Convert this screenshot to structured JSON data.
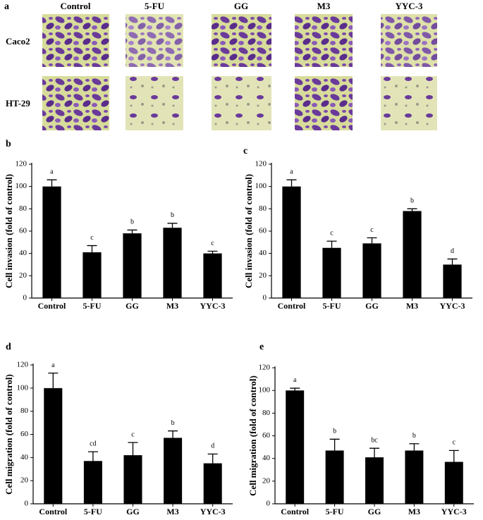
{
  "panel_a": {
    "label": "a",
    "columns": [
      "Control",
      "5-FU",
      "GG",
      "M3",
      "YYC-3"
    ],
    "rows": [
      "Caco2",
      "HT-29"
    ]
  },
  "chart_data": [
    {
      "type": "bar",
      "panel": "b",
      "y_label": "Cell invasion (fold of control)",
      "categories": [
        "Control",
        "5-FU",
        "GG",
        "M3",
        "YYC-3"
      ],
      "values": [
        100,
        41,
        58,
        63,
        40
      ],
      "errors": [
        6,
        6,
        3,
        4,
        2
      ],
      "annotations": [
        "a",
        "c",
        "b",
        "b",
        "c"
      ],
      "color": "#000000",
      "ylim": [
        0,
        120
      ],
      "yticks": [
        0,
        20,
        40,
        60,
        80,
        100,
        120
      ]
    },
    {
      "type": "bar",
      "panel": "c",
      "y_label": "Cell invasion (fold of control)",
      "categories": [
        "Control",
        "5-FU",
        "GG",
        "M3",
        "YYC-3"
      ],
      "values": [
        100,
        45,
        49,
        78,
        30
      ],
      "errors": [
        6,
        6,
        5,
        2,
        5
      ],
      "annotations": [
        "a",
        "c",
        "c",
        "b",
        "d"
      ],
      "color": "#000000",
      "ylim": [
        0,
        120
      ],
      "yticks": [
        0,
        20,
        40,
        60,
        80,
        100,
        120
      ]
    },
    {
      "type": "bar",
      "panel": "d",
      "y_label": "Cell migration (fold of control)",
      "categories": [
        "Control",
        "5-FU",
        "GG",
        "M3",
        "YYC-3"
      ],
      "values": [
        100,
        37,
        42,
        57,
        35
      ],
      "errors": [
        13,
        8,
        11,
        6,
        8
      ],
      "annotations": [
        "a",
        "cd",
        "c",
        "b",
        "d"
      ],
      "color": "#000000",
      "ylim": [
        0,
        120
      ],
      "yticks": [
        0,
        20,
        40,
        60,
        80,
        100,
        120
      ]
    },
    {
      "type": "bar",
      "panel": "e",
      "y_label": "Cell migration (fold of control)",
      "categories": [
        "Control",
        "5-FU",
        "GG",
        "M3",
        "YYC-3"
      ],
      "values": [
        100,
        47,
        41,
        47,
        37
      ],
      "errors": [
        2,
        10,
        8,
        6,
        10
      ],
      "annotations": [
        "a",
        "b",
        "bc",
        "b",
        "c"
      ],
      "color": "#000000",
      "ylim": [
        0,
        120
      ],
      "yticks": [
        0,
        20,
        40,
        60,
        80,
        100,
        120
      ]
    }
  ]
}
